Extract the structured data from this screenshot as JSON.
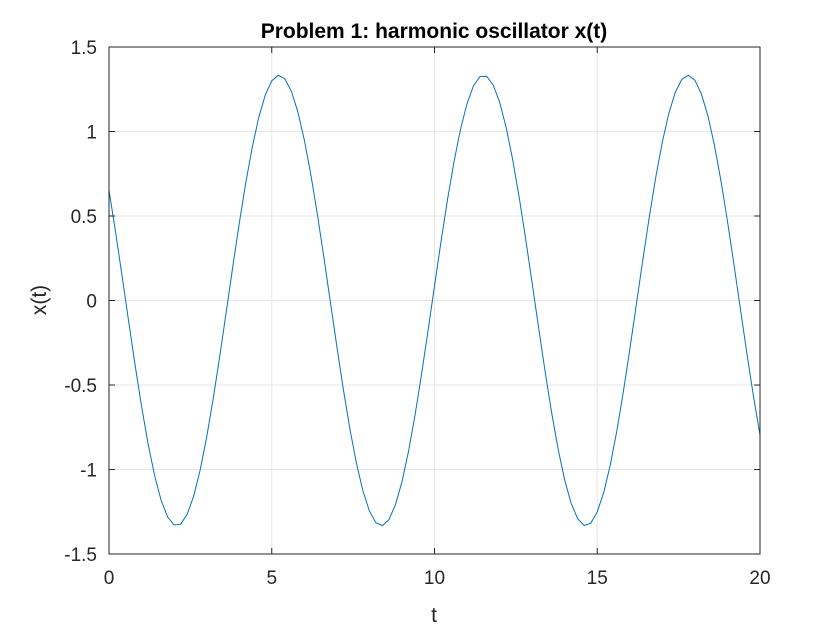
{
  "chart_data": {
    "type": "line",
    "title": "Problem 1: harmonic oscillator x(t)",
    "xlabel": "t",
    "ylabel": "x(t)",
    "xlim": [
      0,
      20
    ],
    "ylim": [
      -1.5,
      1.5
    ],
    "x_ticks": [
      0,
      5,
      10,
      15,
      20
    ],
    "y_ticks": [
      -1.5,
      -1,
      -0.5,
      0,
      0.5,
      1,
      1.5
    ],
    "x_tick_labels": [
      "0",
      "5",
      "10",
      "15",
      "20"
    ],
    "y_tick_labels": [
      "-1.5",
      "-1",
      "-0.5",
      "0",
      "0.5",
      "1",
      "1.5"
    ],
    "grid": true,
    "series": [
      {
        "color": "#0072BD",
        "model": {
          "amplitude": 1.333,
          "angular_frequency": 1.0,
          "phase": 1.06
        },
        "t_range": [
          0,
          20
        ],
        "sample_step": 0.2
      }
    ],
    "axis_color": "#262626",
    "grid_color": "#e6e6e6"
  }
}
